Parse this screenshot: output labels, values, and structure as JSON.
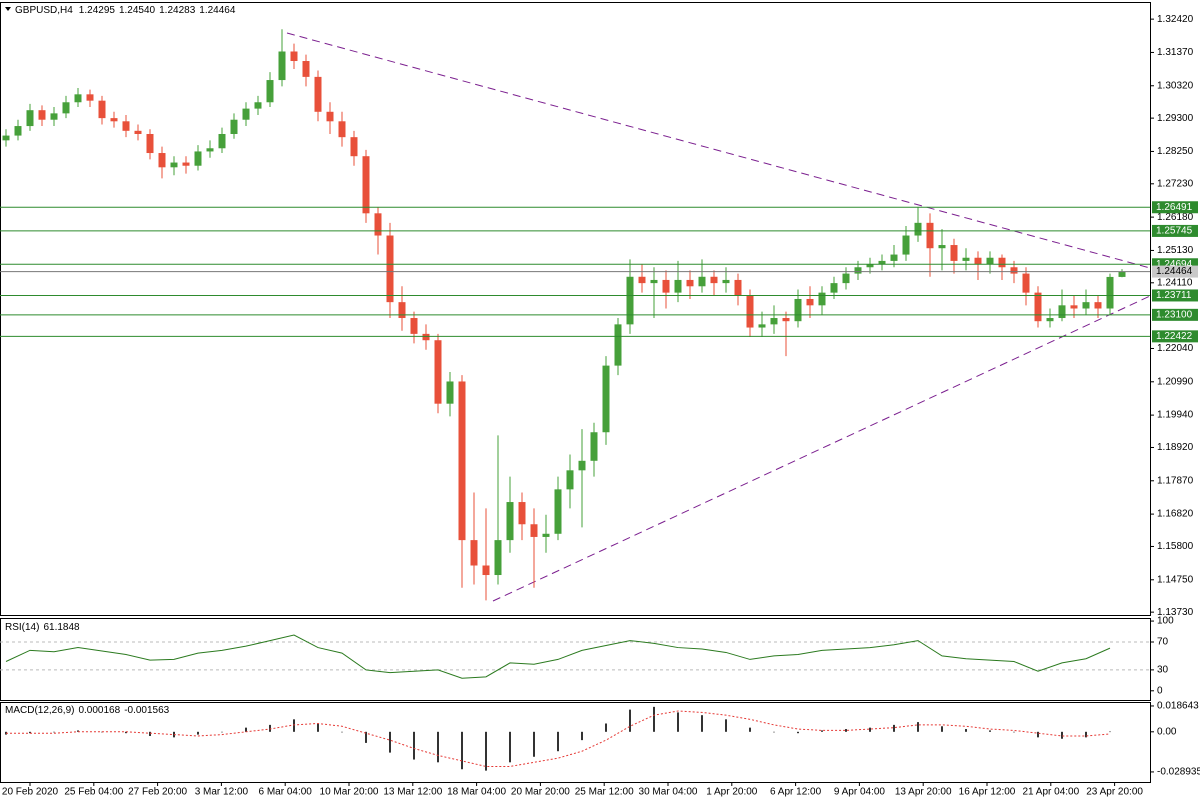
{
  "chart_data": {
    "type": "candlestick",
    "title": "GBPUSD,H4",
    "header_values": [
      "1.24295",
      "1.24540",
      "1.24283",
      "1.24464"
    ],
    "x_labels": [
      "20 Feb 2020",
      "25 Feb 04:00",
      "27 Feb 20:00",
      "3 Mar 12:00",
      "6 Mar 04:00",
      "10 Mar 20:00",
      "13 Mar 12:00",
      "18 Mar 04:00",
      "20 Mar 20:00",
      "25 Mar 12:00",
      "30 Mar 04:00",
      "1 Apr 20:00",
      "6 Apr 12:00",
      "9 Apr 04:00",
      "13 Apr 20:00",
      "16 Apr 12:00",
      "21 Apr 04:00",
      "23 Apr 20:00"
    ],
    "open": [
      1.286,
      1.2875,
      1.2905,
      1.2955,
      1.2925,
      1.2945,
      1.298,
      1.3005,
      1.2985,
      1.293,
      1.292,
      1.289,
      1.288,
      1.282,
      1.2775,
      1.279,
      1.278,
      1.2825,
      1.2835,
      1.288,
      1.2925,
      1.296,
      1.298,
      1.305,
      1.314,
      1.311,
      1.306,
      1.295,
      1.292,
      1.287,
      1.281,
      1.263,
      1.256,
      1.235,
      1.23,
      1.225,
      1.223,
      1.203,
      1.21,
      1.16,
      1.152,
      1.149,
      1.16,
      1.172,
      1.165,
      1.161,
      1.162,
      1.176,
      1.182,
      1.185,
      1.194,
      1.215,
      1.228,
      1.243,
      1.241,
      1.242,
      1.238,
      1.242,
      1.24,
      1.243,
      1.241,
      1.242,
      1.237,
      1.227,
      1.228,
      1.23,
      1.229,
      1.236,
      1.234,
      1.238,
      1.241,
      1.244,
      1.246,
      1.247,
      1.248,
      1.25,
      1.256,
      1.26,
      1.252,
      1.253,
      1.248,
      1.249,
      1.247,
      1.249,
      1.246,
      1.244,
      1.238,
      1.229,
      1.23,
      1.234,
      1.233,
      1.235,
      1.233,
      1.24295
    ],
    "high": [
      1.2895,
      1.2925,
      1.2975,
      1.297,
      1.2965,
      1.3,
      1.3025,
      1.302,
      1.3,
      1.295,
      1.294,
      1.291,
      1.2895,
      1.284,
      1.281,
      1.281,
      1.2845,
      1.286,
      1.29,
      1.2945,
      1.298,
      1.3,
      1.3075,
      1.321,
      1.3165,
      1.313,
      1.308,
      1.298,
      1.295,
      1.289,
      1.283,
      1.265,
      1.26,
      1.24,
      1.232,
      1.228,
      1.225,
      1.213,
      1.212,
      1.175,
      1.17,
      1.193,
      1.18,
      1.175,
      1.17,
      1.168,
      1.18,
      1.187,
      1.195,
      1.197,
      1.218,
      1.23,
      1.2485,
      1.247,
      1.246,
      1.245,
      1.248,
      1.245,
      1.2485,
      1.245,
      1.246,
      1.244,
      1.239,
      1.232,
      1.234,
      1.232,
      1.239,
      1.24,
      1.24,
      1.243,
      1.246,
      1.248,
      1.249,
      1.25,
      1.253,
      1.259,
      1.265,
      1.263,
      1.258,
      1.255,
      1.252,
      1.251,
      1.251,
      1.25,
      1.248,
      1.246,
      1.24,
      1.233,
      1.239,
      1.237,
      1.239,
      1.237,
      1.244,
      1.2454
    ],
    "low": [
      1.284,
      1.286,
      1.289,
      1.2905,
      1.2905,
      1.293,
      1.2965,
      1.2965,
      1.291,
      1.29,
      1.287,
      1.286,
      1.28,
      1.274,
      1.275,
      1.2755,
      1.2765,
      1.2805,
      1.282,
      1.2865,
      1.2905,
      1.294,
      1.2965,
      1.303,
      1.3085,
      1.303,
      1.292,
      1.288,
      1.284,
      1.278,
      1.26,
      1.25,
      1.23,
      1.226,
      1.222,
      1.22,
      1.2,
      1.199,
      1.145,
      1.146,
      1.141,
      1.146,
      1.156,
      1.16,
      1.145,
      1.156,
      1.16,
      1.17,
      1.164,
      1.18,
      1.19,
      1.212,
      1.225,
      1.238,
      1.23,
      1.233,
      1.235,
      1.236,
      1.238,
      1.237,
      1.238,
      1.234,
      1.224,
      1.224,
      1.225,
      1.218,
      1.227,
      1.23,
      1.231,
      1.236,
      1.239,
      1.242,
      1.244,
      1.245,
      1.246,
      1.248,
      1.254,
      1.243,
      1.245,
      1.244,
      1.245,
      1.242,
      1.244,
      1.242,
      1.241,
      1.234,
      1.227,
      1.227,
      1.229,
      1.23,
      1.231,
      1.23,
      1.231,
      1.24283
    ],
    "close": [
      1.2875,
      1.2905,
      1.2955,
      1.2925,
      1.2945,
      1.298,
      1.3005,
      1.2985,
      1.293,
      1.292,
      1.289,
      1.288,
      1.282,
      1.2775,
      1.279,
      1.278,
      1.2825,
      1.2835,
      1.288,
      1.2925,
      1.296,
      1.298,
      1.305,
      1.314,
      1.311,
      1.306,
      1.295,
      1.292,
      1.287,
      1.281,
      1.263,
      1.256,
      1.235,
      1.23,
      1.225,
      1.223,
      1.203,
      1.21,
      1.16,
      1.152,
      1.149,
      1.16,
      1.172,
      1.165,
      1.161,
      1.162,
      1.176,
      1.182,
      1.185,
      1.194,
      1.215,
      1.228,
      1.243,
      1.241,
      1.242,
      1.238,
      1.242,
      1.24,
      1.243,
      1.241,
      1.242,
      1.237,
      1.227,
      1.228,
      1.23,
      1.229,
      1.236,
      1.234,
      1.238,
      1.241,
      1.244,
      1.246,
      1.247,
      1.248,
      1.25,
      1.256,
      1.26,
      1.252,
      1.253,
      1.248,
      1.249,
      1.247,
      1.249,
      1.246,
      1.244,
      1.238,
      1.229,
      1.23,
      1.234,
      1.233,
      1.235,
      1.233,
      1.24295,
      1.24464
    ],
    "up_color": "#46a03a",
    "down_color": "#e8503a",
    "ylim": [
      1.1364,
      1.3296
    ],
    "yticks": [
      {
        "value": 1.3242,
        "label": "1.32420"
      },
      {
        "value": 1.3137,
        "label": "1.31370"
      },
      {
        "value": 1.3032,
        "label": "1.30320"
      },
      {
        "value": 1.293,
        "label": "1.29300"
      },
      {
        "value": 1.2825,
        "label": "1.28250"
      },
      {
        "value": 1.2723,
        "label": "1.27230"
      },
      {
        "value": 1.2618,
        "label": "1.26180"
      },
      {
        "value": 1.2513,
        "label": "1.25130"
      },
      {
        "value": 1.2411,
        "label": "1.24110"
      },
      {
        "value": 1.2204,
        "label": "1.22040"
      },
      {
        "value": 1.2099,
        "label": "1.20990"
      },
      {
        "value": 1.1994,
        "label": "1.19940"
      },
      {
        "value": 1.1892,
        "label": "1.18920"
      },
      {
        "value": 1.1787,
        "label": "1.17870"
      },
      {
        "value": 1.1682,
        "label": "1.16820"
      },
      {
        "value": 1.158,
        "label": "1.15800"
      },
      {
        "value": 1.1475,
        "label": "1.14750"
      },
      {
        "value": 1.1373,
        "label": "1.13730"
      }
    ],
    "levels": [
      1.26491,
      1.25745,
      1.24694,
      1.23711,
      {
        "value": 1.231,
        "label": "1.23100"
      },
      1.22422
    ],
    "level_color": "#2e8b2e",
    "current_price": 1.24464,
    "rsi": {
      "name": "RSI(14)",
      "color": "#2b7a1f",
      "ylim": [
        -13.2,
        104.4
      ],
      "yticks": [
        100,
        70,
        30,
        0
      ],
      "levels": [
        70,
        30
      ],
      "values": [
        42,
        58,
        56,
        62,
        57,
        52,
        44,
        45,
        54,
        58,
        64,
        72,
        80,
        62,
        54,
        30,
        26,
        28,
        30,
        18,
        20,
        40,
        38,
        45,
        58,
        65,
        72,
        68,
        62,
        60,
        55,
        45,
        50,
        52,
        58,
        60,
        62,
        66,
        72,
        50,
        46,
        44,
        42,
        28,
        40,
        46,
        61.1848
      ]
    },
    "macd": {
      "name": "MACD(12,26,9)",
      "signal_color": "#e53935",
      "ylim": [
        -0.0362,
        0.0215
      ],
      "yticks": [
        0.018643,
        {
          "value": 0,
          "label": "0.00"
        },
        -0.028935
      ],
      "histogram": [
        -0.002,
        -0.001,
        0.0,
        0.001,
        0.0,
        -0.001,
        -0.003,
        -0.004,
        -0.002,
        0.0,
        0.003,
        0.005,
        0.009,
        0.006,
        0.0,
        -0.008,
        -0.015,
        -0.02,
        -0.022,
        -0.027,
        -0.028,
        -0.022,
        -0.018,
        -0.014,
        -0.006,
        0.006,
        0.016,
        0.018,
        0.014,
        0.012,
        0.009,
        0.003,
        0.0,
        -0.001,
        0.001,
        0.002,
        0.003,
        0.005,
        0.007,
        0.004,
        0.002,
        0.001,
        0.0,
        -0.004,
        -0.005,
        -0.004,
        0.000168
      ],
      "signal": [
        -0.001,
        -0.001,
        -0.001,
        0.0,
        0.0,
        0.0,
        -0.001,
        -0.002,
        -0.003,
        -0.002,
        0.0,
        0.002,
        0.005,
        0.006,
        0.004,
        -0.001,
        -0.006,
        -0.012,
        -0.017,
        -0.021,
        -0.025,
        -0.025,
        -0.022,
        -0.019,
        -0.014,
        -0.006,
        0.004,
        0.012,
        0.015,
        0.014,
        0.012,
        0.009,
        0.005,
        0.002,
        0.001,
        0.001,
        0.002,
        0.003,
        0.005,
        0.005,
        0.004,
        0.002,
        0.001,
        -0.001,
        -0.003,
        -0.003,
        -0.001563
      ]
    }
  }
}
